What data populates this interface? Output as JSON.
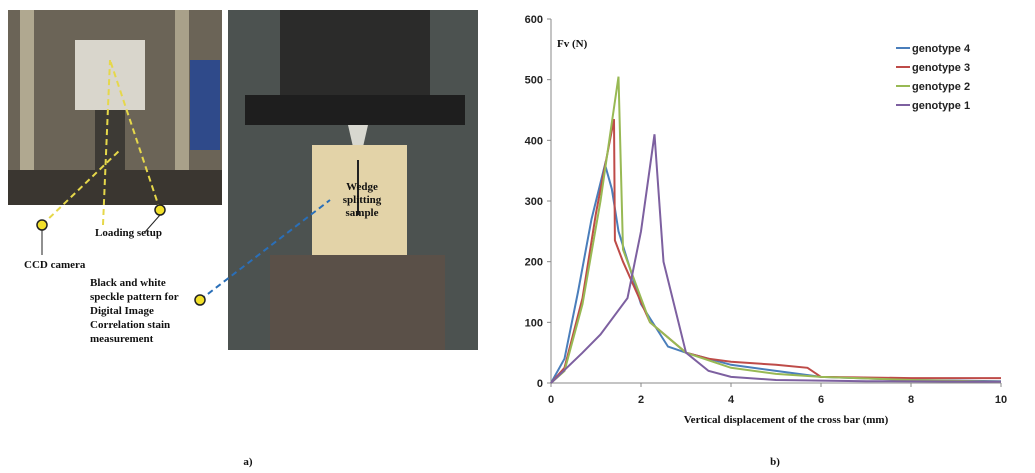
{
  "figure": {
    "panel_a_label": "a)",
    "panel_b_label": "b)",
    "annotations": {
      "ccd_camera": [
        "CCD camera"
      ],
      "loading_setup": [
        "Loading setup"
      ],
      "wedge_sample": [
        "Wedge",
        "splitting",
        "sample"
      ],
      "speckle": [
        "Black and white",
        "speckle pattern for",
        "Digital Image",
        "Correlation stain",
        "measurement"
      ]
    }
  },
  "chart_data": {
    "type": "line",
    "y_label": "Fv (N)",
    "x_label": "Vertical displacement of the cross bar (mm)",
    "xlim": [
      0,
      10
    ],
    "xticks": [
      0,
      2,
      4,
      6,
      8,
      10
    ],
    "ylim": [
      0,
      600
    ],
    "yticks": [
      0,
      100,
      200,
      300,
      400,
      500,
      600
    ],
    "legend": "top-right",
    "series": [
      {
        "name": "genotype 4",
        "color": "#4a7ebb",
        "x": [
          0,
          0.3,
          0.6,
          0.9,
          1.2,
          1.35,
          1.5,
          2.0,
          2.6,
          3.0,
          3.5,
          4.0,
          5.0,
          6.0,
          8.0,
          10.0
        ],
        "values": [
          0,
          40,
          150,
          270,
          360,
          320,
          250,
          130,
          60,
          50,
          40,
          30,
          20,
          10,
          5,
          3
        ]
      },
      {
        "name": "genotype 3",
        "color": "#be4b48",
        "x": [
          0,
          0.3,
          0.7,
          1.0,
          1.4,
          1.42,
          1.6,
          2.2,
          3.0,
          3.5,
          4.0,
          5.0,
          5.7,
          6.0,
          8.0,
          10.0
        ],
        "values": [
          0,
          25,
          140,
          280,
          435,
          235,
          200,
          100,
          50,
          40,
          35,
          30,
          25,
          10,
          8,
          8
        ]
      },
      {
        "name": "genotype 2",
        "color": "#98b954",
        "x": [
          0,
          0.3,
          0.7,
          1.1,
          1.5,
          1.6,
          2.2,
          3.0,
          4.0,
          5.0,
          6.0,
          8.0,
          10.0
        ],
        "values": [
          0,
          20,
          130,
          300,
          505,
          220,
          100,
          50,
          25,
          15,
          10,
          5,
          2
        ]
      },
      {
        "name": "genotype 1",
        "color": "#7d60a0",
        "x": [
          0,
          0.7,
          1.1,
          1.7,
          2.0,
          2.3,
          2.5,
          3.0,
          3.5,
          4.0,
          5.0,
          7.0,
          10.0
        ],
        "values": [
          0,
          50,
          80,
          140,
          250,
          410,
          200,
          50,
          20,
          10,
          5,
          3,
          2
        ]
      }
    ]
  }
}
